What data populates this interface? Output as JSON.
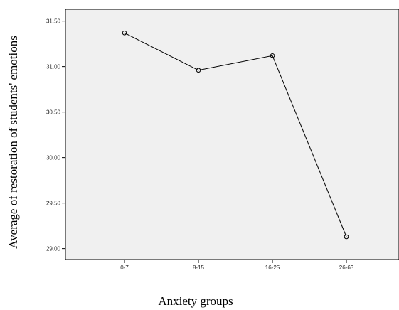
{
  "chart_data": {
    "type": "line",
    "title": "",
    "xlabel": "Anxiety groups",
    "ylabel": "Average of restoration of students' emotions",
    "categories": [
      "0-7",
      "8-15",
      "16-25",
      "26-63"
    ],
    "series": [
      {
        "values": [
          31.37,
          30.96,
          31.12,
          29.13
        ]
      }
    ],
    "ylim": [
      28.88,
      31.63
    ],
    "yticks": [
      "29.00",
      "29.50",
      "30.00",
      "30.50",
      "31.00",
      "31.50"
    ],
    "grid": false,
    "markers": "open-circle",
    "colors": {
      "line": "#000000",
      "plot_background": "#f0f0f0"
    }
  }
}
